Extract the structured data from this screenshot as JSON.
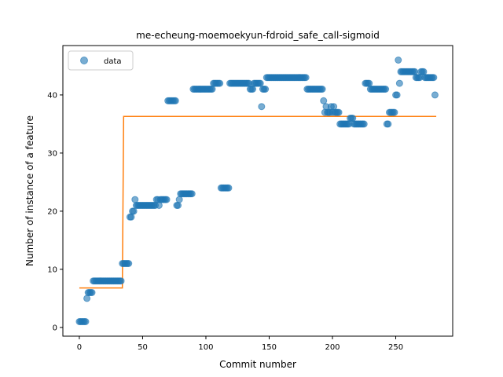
{
  "chart_data": {
    "type": "scatter",
    "title": "me-echeung-moemoekyun-fdroid_safe_call-sigmoid",
    "xlabel": "Commit number",
    "ylabel": "Number of instance of a feature",
    "xlim": [
      -13,
      295
    ],
    "ylim": [
      -1.5,
      48.5
    ],
    "xticks": [
      0,
      50,
      100,
      150,
      200,
      250
    ],
    "yticks": [
      0,
      10,
      20,
      30,
      40
    ],
    "legend": {
      "position": "top-left",
      "entries": [
        "data"
      ]
    },
    "colors": {
      "data": "#1f77b4",
      "fit": "#ff7f0e"
    },
    "series": [
      {
        "name": "data",
        "kind": "scatter",
        "points": [
          [
            0,
            1
          ],
          [
            1,
            1
          ],
          [
            2,
            1
          ],
          [
            3,
            1
          ],
          [
            4,
            1
          ],
          [
            5,
            1
          ],
          [
            6,
            5
          ],
          [
            7,
            6
          ],
          [
            8,
            6
          ],
          [
            9,
            6
          ],
          [
            10,
            6
          ],
          [
            11,
            8
          ],
          [
            12,
            8
          ],
          [
            13,
            8
          ],
          [
            14,
            8
          ],
          [
            15,
            8
          ],
          [
            16,
            8
          ],
          [
            17,
            8
          ],
          [
            18,
            8
          ],
          [
            19,
            8
          ],
          [
            20,
            8
          ],
          [
            21,
            8
          ],
          [
            22,
            8
          ],
          [
            23,
            8
          ],
          [
            24,
            8
          ],
          [
            25,
            8
          ],
          [
            26,
            8
          ],
          [
            27,
            8
          ],
          [
            28,
            8
          ],
          [
            29,
            8
          ],
          [
            30,
            8
          ],
          [
            31,
            8
          ],
          [
            32,
            8
          ],
          [
            33,
            8
          ],
          [
            34,
            11
          ],
          [
            35,
            11
          ],
          [
            36,
            11
          ],
          [
            37,
            11
          ],
          [
            38,
            11
          ],
          [
            39,
            11
          ],
          [
            40,
            19
          ],
          [
            41,
            19
          ],
          [
            42,
            20
          ],
          [
            43,
            20
          ],
          [
            44,
            22
          ],
          [
            45,
            21
          ],
          [
            46,
            21
          ],
          [
            47,
            21
          ],
          [
            48,
            21
          ],
          [
            49,
            21
          ],
          [
            50,
            21
          ],
          [
            51,
            21
          ],
          [
            52,
            21
          ],
          [
            53,
            21
          ],
          [
            54,
            21
          ],
          [
            55,
            21
          ],
          [
            56,
            21
          ],
          [
            57,
            21
          ],
          [
            58,
            21
          ],
          [
            59,
            21
          ],
          [
            60,
            21
          ],
          [
            61,
            22
          ],
          [
            62,
            22
          ],
          [
            63,
            21
          ],
          [
            64,
            22
          ],
          [
            65,
            22
          ],
          [
            66,
            22
          ],
          [
            67,
            22
          ],
          [
            68,
            22
          ],
          [
            69,
            22
          ],
          [
            70,
            39
          ],
          [
            71,
            39
          ],
          [
            72,
            39
          ],
          [
            73,
            39
          ],
          [
            74,
            39
          ],
          [
            75,
            39
          ],
          [
            76,
            39
          ],
          [
            77,
            21
          ],
          [
            78,
            21
          ],
          [
            79,
            22
          ],
          [
            80,
            23
          ],
          [
            81,
            23
          ],
          [
            82,
            23
          ],
          [
            83,
            23
          ],
          [
            84,
            23
          ],
          [
            85,
            23
          ],
          [
            86,
            23
          ],
          [
            87,
            23
          ],
          [
            88,
            23
          ],
          [
            89,
            23
          ],
          [
            90,
            41
          ],
          [
            91,
            41
          ],
          [
            92,
            41
          ],
          [
            93,
            41
          ],
          [
            94,
            41
          ],
          [
            95,
            41
          ],
          [
            96,
            41
          ],
          [
            97,
            41
          ],
          [
            98,
            41
          ],
          [
            99,
            41
          ],
          [
            100,
            41
          ],
          [
            101,
            41
          ],
          [
            102,
            41
          ],
          [
            103,
            41
          ],
          [
            104,
            41
          ],
          [
            105,
            41
          ],
          [
            106,
            42
          ],
          [
            107,
            42
          ],
          [
            108,
            42
          ],
          [
            109,
            42
          ],
          [
            110,
            42
          ],
          [
            111,
            42
          ],
          [
            112,
            24
          ],
          [
            113,
            24
          ],
          [
            114,
            24
          ],
          [
            115,
            24
          ],
          [
            116,
            24
          ],
          [
            117,
            24
          ],
          [
            118,
            24
          ],
          [
            119,
            42
          ],
          [
            120,
            42
          ],
          [
            121,
            42
          ],
          [
            122,
            42
          ],
          [
            123,
            42
          ],
          [
            124,
            42
          ],
          [
            125,
            42
          ],
          [
            126,
            42
          ],
          [
            127,
            42
          ],
          [
            128,
            42
          ],
          [
            129,
            42
          ],
          [
            130,
            42
          ],
          [
            131,
            42
          ],
          [
            132,
            42
          ],
          [
            133,
            42
          ],
          [
            134,
            42
          ],
          [
            135,
            41
          ],
          [
            136,
            41
          ],
          [
            137,
            41
          ],
          [
            138,
            42
          ],
          [
            139,
            42
          ],
          [
            140,
            42
          ],
          [
            141,
            42
          ],
          [
            142,
            42
          ],
          [
            143,
            42
          ],
          [
            144,
            38
          ],
          [
            145,
            41
          ],
          [
            146,
            41
          ],
          [
            147,
            41
          ],
          [
            148,
            43
          ],
          [
            149,
            43
          ],
          [
            150,
            43
          ],
          [
            151,
            43
          ],
          [
            152,
            43
          ],
          [
            153,
            43
          ],
          [
            154,
            43
          ],
          [
            155,
            43
          ],
          [
            156,
            43
          ],
          [
            157,
            43
          ],
          [
            158,
            43
          ],
          [
            159,
            43
          ],
          [
            160,
            43
          ],
          [
            161,
            43
          ],
          [
            162,
            43
          ],
          [
            163,
            43
          ],
          [
            164,
            43
          ],
          [
            165,
            43
          ],
          [
            166,
            43
          ],
          [
            167,
            43
          ],
          [
            168,
            43
          ],
          [
            169,
            43
          ],
          [
            170,
            43
          ],
          [
            171,
            43
          ],
          [
            172,
            43
          ],
          [
            173,
            43
          ],
          [
            174,
            43
          ],
          [
            175,
            43
          ],
          [
            176,
            43
          ],
          [
            177,
            43
          ],
          [
            178,
            43
          ],
          [
            179,
            43
          ],
          [
            180,
            41
          ],
          [
            181,
            41
          ],
          [
            182,
            41
          ],
          [
            183,
            41
          ],
          [
            184,
            41
          ],
          [
            185,
            41
          ],
          [
            186,
            41
          ],
          [
            187,
            41
          ],
          [
            188,
            41
          ],
          [
            189,
            41
          ],
          [
            190,
            41
          ],
          [
            191,
            41
          ],
          [
            192,
            41
          ],
          [
            193,
            39
          ],
          [
            194,
            37
          ],
          [
            195,
            38
          ],
          [
            196,
            37
          ],
          [
            197,
            37
          ],
          [
            198,
            37
          ],
          [
            199,
            38
          ],
          [
            200,
            37
          ],
          [
            201,
            38
          ],
          [
            202,
            37
          ],
          [
            203,
            37
          ],
          [
            204,
            37
          ],
          [
            205,
            37
          ],
          [
            206,
            35
          ],
          [
            207,
            35
          ],
          [
            208,
            35
          ],
          [
            209,
            35
          ],
          [
            210,
            35
          ],
          [
            211,
            35
          ],
          [
            212,
            35
          ],
          [
            213,
            35
          ],
          [
            214,
            36
          ],
          [
            215,
            36
          ],
          [
            216,
            36
          ],
          [
            217,
            35
          ],
          [
            218,
            35
          ],
          [
            219,
            35
          ],
          [
            220,
            35
          ],
          [
            221,
            35
          ],
          [
            222,
            35
          ],
          [
            223,
            35
          ],
          [
            224,
            35
          ],
          [
            225,
            35
          ],
          [
            226,
            42
          ],
          [
            227,
            42
          ],
          [
            228,
            42
          ],
          [
            229,
            42
          ],
          [
            230,
            41
          ],
          [
            231,
            41
          ],
          [
            232,
            41
          ],
          [
            233,
            41
          ],
          [
            234,
            41
          ],
          [
            235,
            41
          ],
          [
            236,
            41
          ],
          [
            237,
            41
          ],
          [
            238,
            41
          ],
          [
            239,
            41
          ],
          [
            240,
            41
          ],
          [
            241,
            41
          ],
          [
            242,
            41
          ],
          [
            243,
            35
          ],
          [
            244,
            35
          ],
          [
            245,
            37
          ],
          [
            246,
            37
          ],
          [
            247,
            37
          ],
          [
            248,
            37
          ],
          [
            249,
            37
          ],
          [
            250,
            40
          ],
          [
            251,
            40
          ],
          [
            252,
            46
          ],
          [
            253,
            42
          ],
          [
            254,
            44
          ],
          [
            255,
            44
          ],
          [
            256,
            44
          ],
          [
            257,
            44
          ],
          [
            258,
            44
          ],
          [
            259,
            44
          ],
          [
            260,
            44
          ],
          [
            261,
            44
          ],
          [
            262,
            44
          ],
          [
            263,
            44
          ],
          [
            264,
            44
          ],
          [
            265,
            44
          ],
          [
            266,
            43
          ],
          [
            267,
            43
          ],
          [
            268,
            43
          ],
          [
            269,
            43
          ],
          [
            270,
            44
          ],
          [
            271,
            44
          ],
          [
            272,
            44
          ],
          [
            273,
            43
          ],
          [
            274,
            43
          ],
          [
            275,
            43
          ],
          [
            276,
            43
          ],
          [
            277,
            43
          ],
          [
            278,
            43
          ],
          [
            279,
            43
          ],
          [
            280,
            43
          ],
          [
            281,
            40
          ]
        ]
      },
      {
        "kind": "step-line",
        "points": [
          [
            0,
            6.8
          ],
          [
            34,
            6.8
          ],
          [
            35,
            36.3
          ],
          [
            282,
            36.3
          ]
        ]
      }
    ]
  }
}
